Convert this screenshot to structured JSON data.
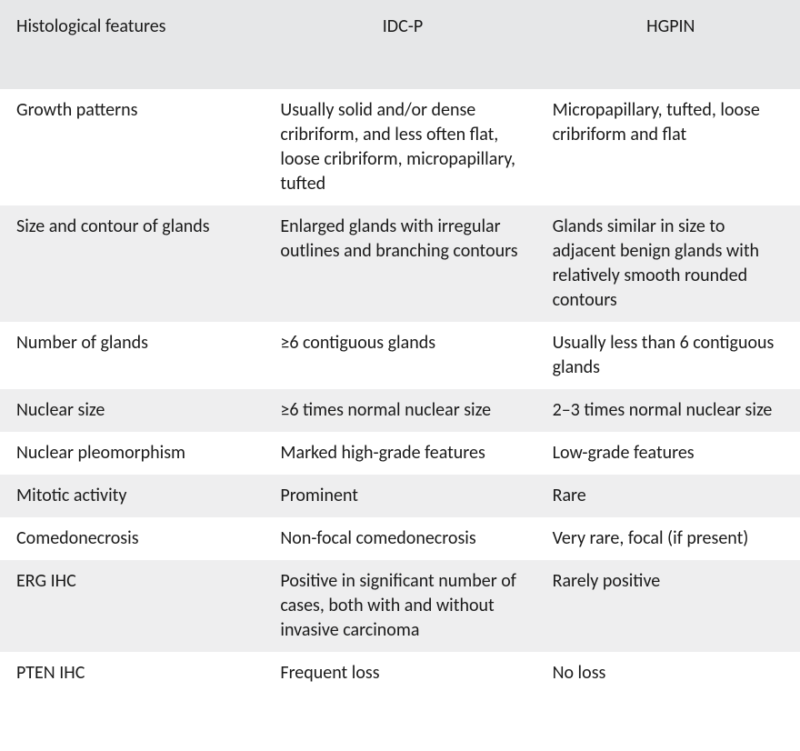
{
  "table": {
    "type": "table",
    "background_color": "#ffffff",
    "stripe_color": "#eeeeef",
    "header_background": "#e6e7e8",
    "text_color": "#1a1a1a",
    "font_size": 20,
    "columns": [
      {
        "key": "feature",
        "label": "Histological features",
        "width": "33%",
        "align": "left"
      },
      {
        "key": "idcp",
        "label": "IDC-P",
        "width": "34%",
        "align": "left"
      },
      {
        "key": "hgpin",
        "label": "HGPIN",
        "width": "33%",
        "align": "left"
      }
    ],
    "rows": [
      {
        "feature": "Growth patterns",
        "idcp": "Usually solid and/or dense cribriform, and less often flat, loose cribriform, micropapillary, tufted",
        "hgpin": "Micropapillary, tufted, loose cribriform and flat"
      },
      {
        "feature": "Size and contour of glands",
        "idcp": "Enlarged glands with irregular outlines and branching contours",
        "hgpin": "Glands similar in size to adjacent benign glands with relatively smooth rounded contours"
      },
      {
        "feature": "Number of glands",
        "idcp": "≥6 contiguous glands",
        "hgpin": "Usually less than 6 contiguous glands"
      },
      {
        "feature": "Nuclear size",
        "idcp": "≥6 times normal nuclear size",
        "hgpin": "2–3 times normal nuclear size"
      },
      {
        "feature": "Nuclear pleomorphism",
        "idcp": "Marked high-grade features",
        "hgpin": "Low-grade features"
      },
      {
        "feature": "Mitotic activity",
        "idcp": "Prominent",
        "hgpin": "Rare"
      },
      {
        "feature": "Comedonecrosis",
        "idcp": "Non-focal comedonecrosis",
        "hgpin": "Very rare, focal (if present)"
      },
      {
        "feature": "ERG IHC",
        "idcp": "Positive in significant number of cases, both with and without invasive carcinoma",
        "hgpin": "Rarely positive"
      },
      {
        "feature": "PTEN IHC",
        "idcp": "Frequent loss",
        "hgpin": "No loss"
      }
    ]
  }
}
